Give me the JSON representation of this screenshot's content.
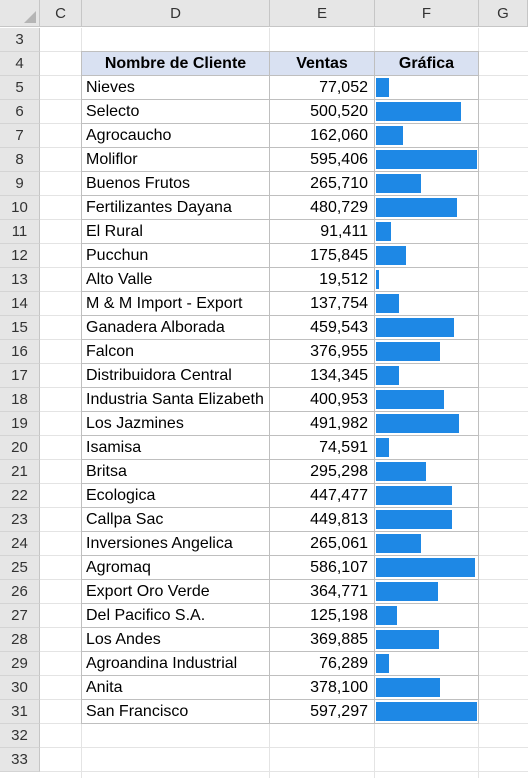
{
  "sheet": {
    "columns": [
      "C",
      "D",
      "E",
      "F",
      "G"
    ],
    "rows": [
      "3",
      "4",
      "5",
      "6",
      "7",
      "8",
      "9",
      "10",
      "11",
      "12",
      "13",
      "14",
      "15",
      "16",
      "17",
      "18",
      "19",
      "20",
      "21",
      "22",
      "23",
      "24",
      "25",
      "26",
      "27",
      "28",
      "29",
      "30",
      "31",
      "32",
      "33"
    ]
  },
  "table": {
    "headers": {
      "name": "Nombre de Cliente",
      "sales": "Ventas",
      "chart": "Gráfica"
    },
    "bar_color": "#1e88e5",
    "rows": [
      {
        "name": "Nieves",
        "sales": "77,052",
        "value": 77052
      },
      {
        "name": "Selecto",
        "sales": "500,520",
        "value": 500520
      },
      {
        "name": "Agrocaucho",
        "sales": "162,060",
        "value": 162060
      },
      {
        "name": "Moliflor",
        "sales": "595,406",
        "value": 595406
      },
      {
        "name": "Buenos Frutos",
        "sales": "265,710",
        "value": 265710
      },
      {
        "name": "Fertilizantes Dayana",
        "sales": "480,729",
        "value": 480729
      },
      {
        "name": "El Rural",
        "sales": "91,411",
        "value": 91411
      },
      {
        "name": "Pucchun",
        "sales": "175,845",
        "value": 175845
      },
      {
        "name": "Alto Valle",
        "sales": "19,512",
        "value": 19512
      },
      {
        "name": "M & M Import - Export",
        "sales": "137,754",
        "value": 137754
      },
      {
        "name": "Ganadera Alborada",
        "sales": "459,543",
        "value": 459543
      },
      {
        "name": "Falcon",
        "sales": "376,955",
        "value": 376955
      },
      {
        "name": "Distribuidora Central",
        "sales": "134,345",
        "value": 134345
      },
      {
        "name": "Industria Santa Elizabeth",
        "sales": "400,953",
        "value": 400953
      },
      {
        "name": "Los Jazmines",
        "sales": "491,982",
        "value": 491982
      },
      {
        "name": "Isamisa",
        "sales": "74,591",
        "value": 74591
      },
      {
        "name": "Britsa",
        "sales": "295,298",
        "value": 295298
      },
      {
        "name": "Ecologica",
        "sales": "447,477",
        "value": 447477
      },
      {
        "name": "Callpa Sac",
        "sales": "449,813",
        "value": 449813
      },
      {
        "name": "Inversiones Angelica",
        "sales": "265,061",
        "value": 265061
      },
      {
        "name": "Agromaq",
        "sales": "586,107",
        "value": 586107
      },
      {
        "name": "Export Oro Verde",
        "sales": "364,771",
        "value": 364771
      },
      {
        "name": "Del Pacifico S.A.",
        "sales": "125,198",
        "value": 125198
      },
      {
        "name": "Los Andes",
        "sales": "369,885",
        "value": 369885
      },
      {
        "name": "Agroandina Industrial",
        "sales": "76,289",
        "value": 76289
      },
      {
        "name": "Anita",
        "sales": "378,100",
        "value": 378100
      },
      {
        "name": "San Francisco",
        "sales": "597,297",
        "value": 597297
      }
    ]
  }
}
